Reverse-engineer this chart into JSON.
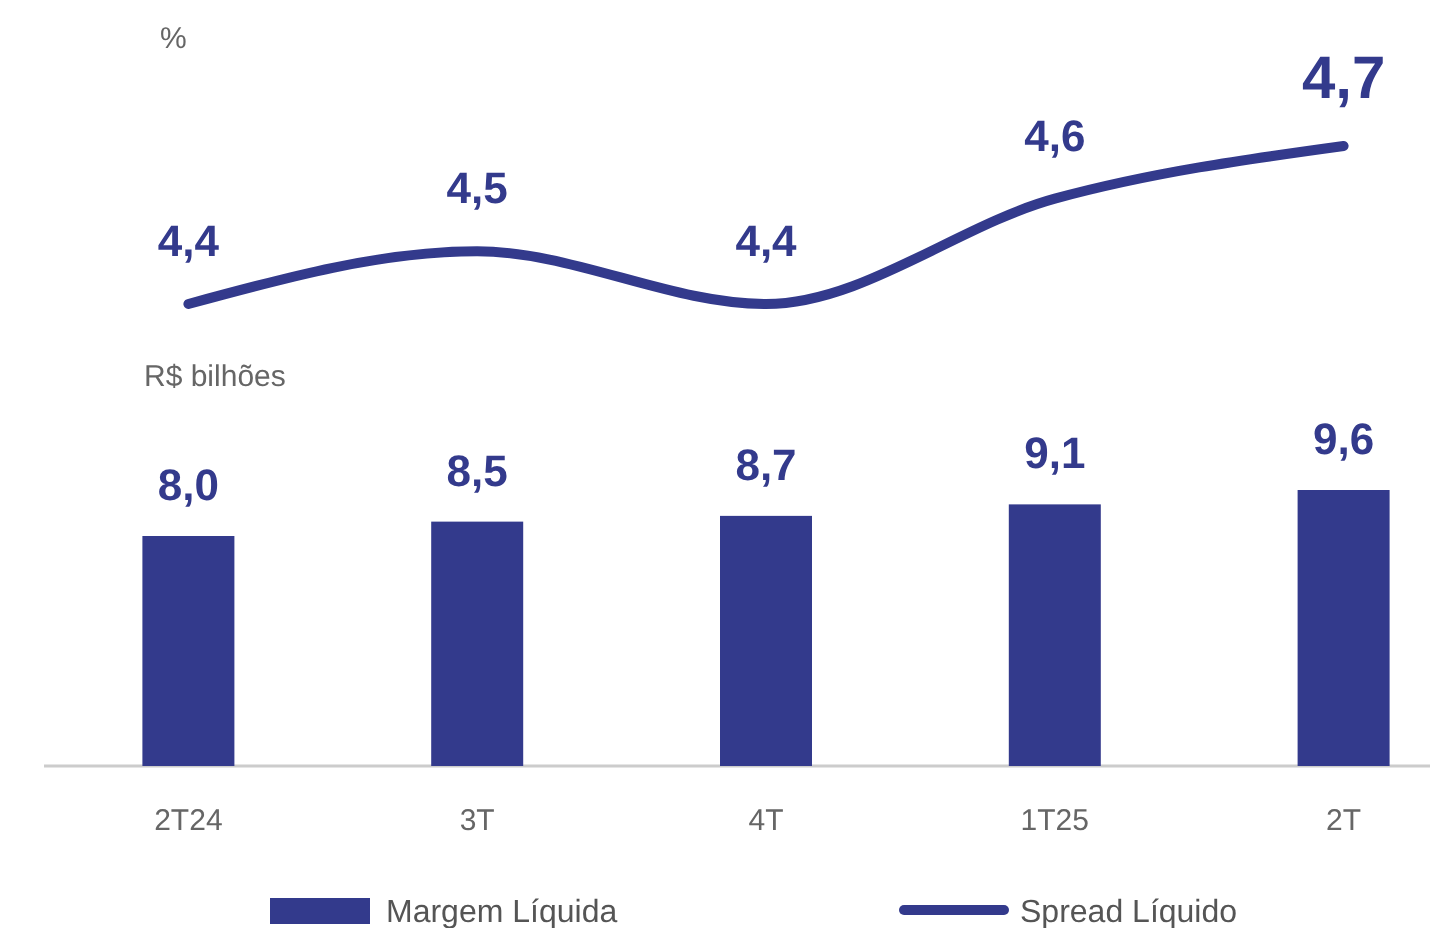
{
  "chart_data": [
    {
      "type": "line",
      "ylabel": "%",
      "categories": [
        null,
        null,
        null,
        null,
        null
      ],
      "legend": "bottom",
      "series": [
        {
          "name": "Spread Líquido",
          "color": "#333a8c",
          "values": [
            4.4,
            4.5,
            4.4,
            4.6,
            4.7
          ],
          "value_labels": [
            "4,4",
            "4,5",
            "4,4",
            "4,6",
            "4,7"
          ]
        }
      ]
    },
    {
      "type": "bar",
      "ylabel": "R$ bilhões",
      "categories": [
        "2T24",
        "3T",
        "4T",
        "1T25",
        "2T"
      ],
      "legend": "bottom",
      "series": [
        {
          "name": "Margem Líquida",
          "color": "#333a8c",
          "values": [
            8.0,
            8.5,
            8.7,
            9.1,
            9.6
          ],
          "value_labels": [
            "8,0",
            "8,5",
            "8,7",
            "9,1",
            "9,6"
          ]
        }
      ]
    }
  ]
}
